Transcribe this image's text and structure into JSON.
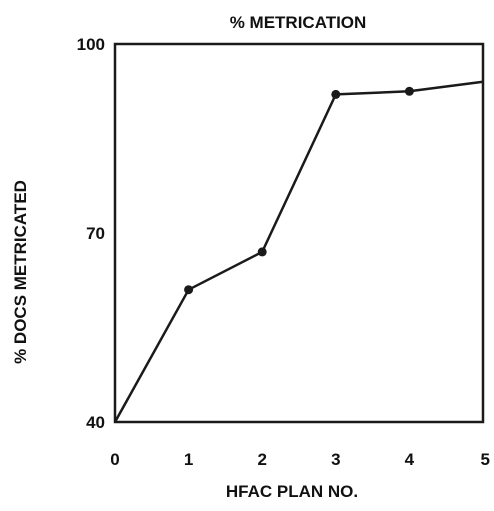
{
  "chart_data": {
    "type": "line",
    "title": "% METRICATION",
    "xlabel": "HFAC PLAN NO.",
    "ylabel": "% DOCS METRICATED",
    "x": [
      0,
      1,
      2,
      3,
      4,
      5
    ],
    "xticks": [
      "0",
      "1",
      "2",
      "3",
      "4",
      "5"
    ],
    "yticks": [
      "40",
      "70",
      "100"
    ],
    "xlim": [
      0,
      5
    ],
    "ylim": [
      40,
      100
    ],
    "grid": false,
    "series": [
      {
        "values": [
          40,
          61,
          67,
          92,
          92.5,
          94
        ],
        "markers": [
          false,
          true,
          true,
          true,
          true,
          false
        ]
      }
    ],
    "colors": {
      "line": "#1a1a1a",
      "axis": "#1a1a1a",
      "text": "#111111"
    }
  }
}
